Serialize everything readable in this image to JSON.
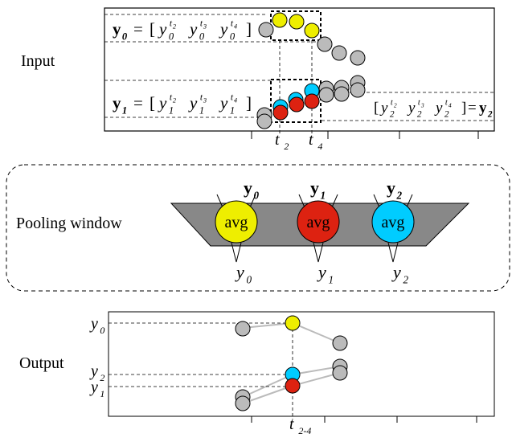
{
  "input": {
    "label": "Input",
    "eq0": {
      "lhs": {
        "y": "y",
        "sub": "0"
      },
      "eq": "=",
      "open": "[",
      "close": "]",
      "terms": [
        {
          "y": "y",
          "sub": "0",
          "sup": "t",
          "supsub": "2"
        },
        {
          "y": "y",
          "sub": "0",
          "sup": "t",
          "supsub": "3"
        },
        {
          "y": "y",
          "sub": "0",
          "sup": "t",
          "supsub": "4"
        }
      ]
    },
    "eq1": {
      "lhs": {
        "y": "y",
        "sub": "1"
      },
      "eq": "=",
      "open": "[",
      "close": "]",
      "terms": [
        {
          "y": "y",
          "sub": "1",
          "sup": "t",
          "supsub": "2"
        },
        {
          "y": "y",
          "sub": "1",
          "sup": "t",
          "supsub": "3"
        },
        {
          "y": "y",
          "sub": "1",
          "sup": "t",
          "supsub": "4"
        }
      ]
    },
    "eq2": {
      "lhs": {
        "y": "y",
        "sub": "2"
      },
      "eq": "=",
      "open": "[",
      "close": "]",
      "terms": [
        {
          "y": "y",
          "sub": "2",
          "sup": "t",
          "supsub": "2"
        },
        {
          "y": "y",
          "sub": "2",
          "sup": "t",
          "supsub": "3"
        },
        {
          "y": "y",
          "sub": "2",
          "sup": "t",
          "supsub": "4"
        }
      ]
    },
    "ticks": [
      {
        "t": "t",
        "sub": "2"
      },
      {
        "t": "t",
        "sub": "4"
      }
    ]
  },
  "pooling": {
    "label": "Pooling window",
    "units": [
      {
        "top": {
          "y": "y",
          "sub": "0"
        },
        "op": "avg",
        "bottom": {
          "y": "y",
          "sub": "0"
        }
      },
      {
        "top": {
          "y": "y",
          "sub": "1"
        },
        "op": "avg",
        "bottom": {
          "y": "y",
          "sub": "1"
        }
      },
      {
        "top": {
          "y": "y",
          "sub": "2"
        },
        "op": "avg",
        "bottom": {
          "y": "y",
          "sub": "2"
        }
      }
    ]
  },
  "output": {
    "label": "Output",
    "ylabels": [
      {
        "y": "y",
        "sub": "0"
      },
      {
        "y": "y",
        "sub": "2"
      },
      {
        "y": "y",
        "sub": "1"
      }
    ],
    "tick": {
      "t": "t",
      "sub": "2-4"
    }
  }
}
